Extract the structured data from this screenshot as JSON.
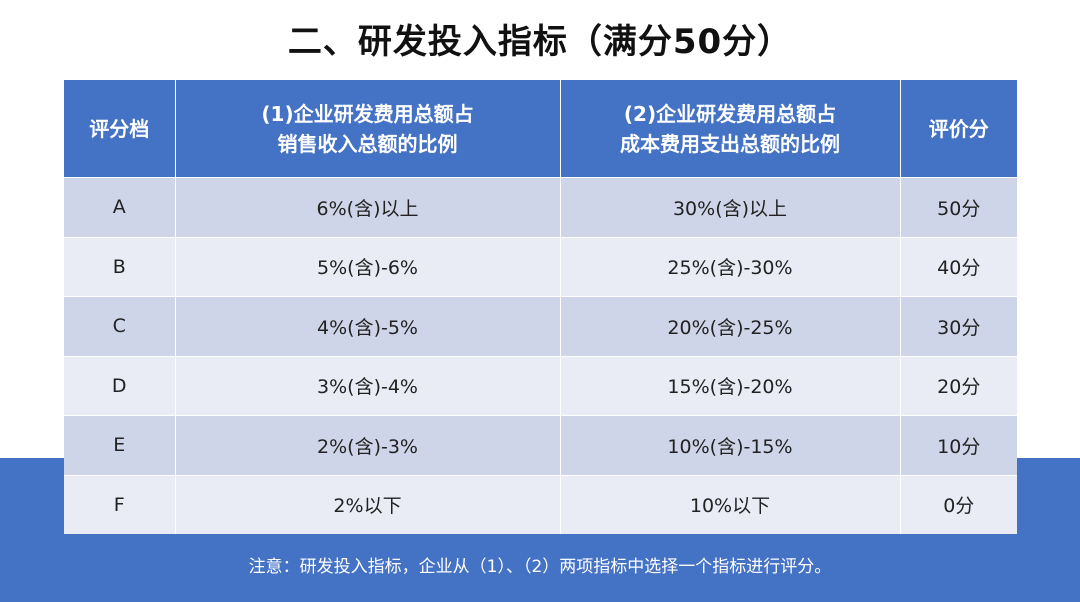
{
  "title": "二、研发投入指标（满分50分）",
  "table": {
    "headers": [
      {
        "line1": "评分档",
        "line2": ""
      },
      {
        "line1": "(1)企业研发费用总额占",
        "line2": "销售收入总额的比例"
      },
      {
        "line1": "(2)企业研发费用总额占",
        "line2": "成本费用支出总额的比例"
      },
      {
        "line1": "评价分",
        "line2": ""
      }
    ],
    "rows": [
      {
        "grade": "A",
        "ratio1": "6%(含)以上",
        "ratio2": "30%(含)以上",
        "score": "50分"
      },
      {
        "grade": "B",
        "ratio1": "5%(含)-6%",
        "ratio2": "25%(含)-30%",
        "score": "40分"
      },
      {
        "grade": "C",
        "ratio1": "4%(含)-5%",
        "ratio2": "20%(含)-25%",
        "score": "30分"
      },
      {
        "grade": "D",
        "ratio1": "3%(含)-4%",
        "ratio2": "15%(含)-20%",
        "score": "20分"
      },
      {
        "grade": "E",
        "ratio1": "2%(含)-3%",
        "ratio2": "10%(含)-15%",
        "score": "10分"
      },
      {
        "grade": "F",
        "ratio1": "2%以下",
        "ratio2": "10%以下",
        "score": "0分"
      }
    ]
  },
  "note": "注意：研发投入指标，企业从（1）、（2）两项指标中选择一个指标进行评分。",
  "colors": {
    "header_bg": "#4472c4",
    "row_odd_bg": "#cfd5e8",
    "row_even_bg": "#e9ecf5",
    "band_bg": "#4472c4"
  }
}
